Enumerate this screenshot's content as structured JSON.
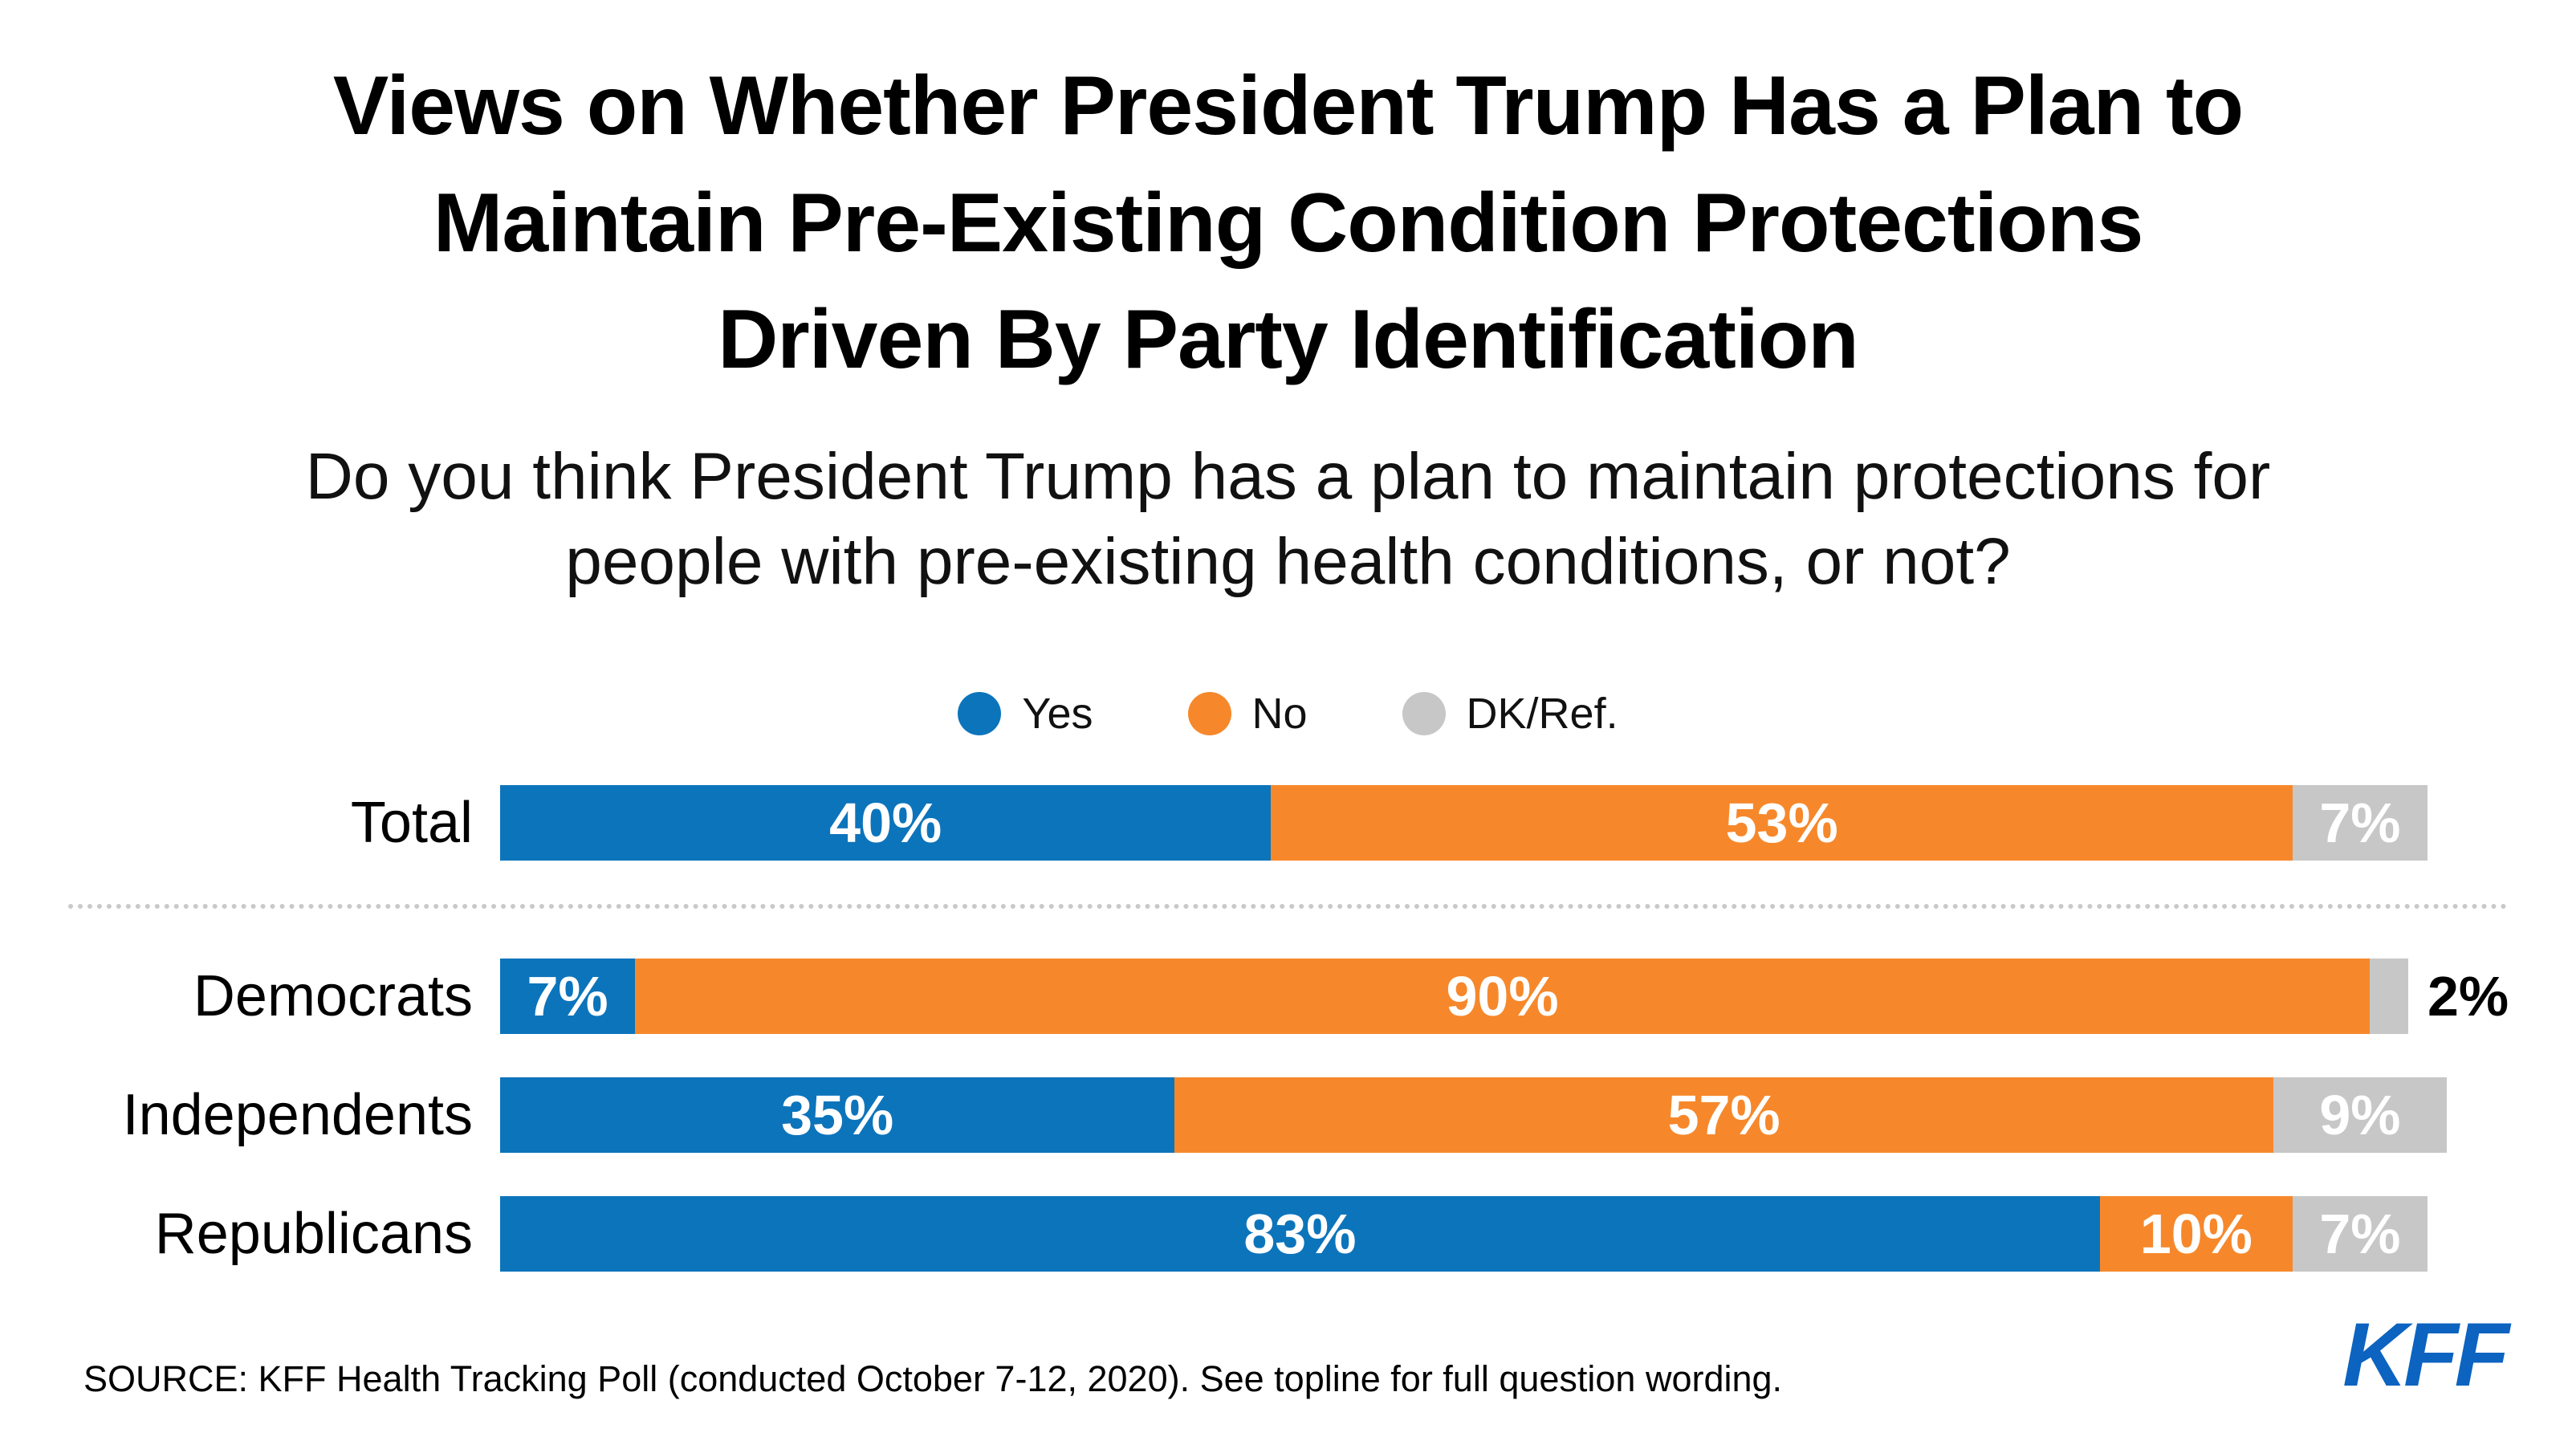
{
  "title_lines": [
    "Views on Whether President Trump Has a Plan to",
    "Maintain Pre-Existing Condition Protections",
    "Driven By Party Identification"
  ],
  "subtitle_lines": [
    "Do you think President Trump has a plan to maintain protections for",
    "people with pre-existing health conditions, or not?"
  ],
  "legend": {
    "items": [
      {
        "label": "Yes",
        "color": "#0c74bb"
      },
      {
        "label": "No",
        "color": "#f6882b"
      },
      {
        "label": "DK/Ref.",
        "color": "#c7c7c7"
      }
    ]
  },
  "chart_data": {
    "type": "bar",
    "stacked": true,
    "orientation": "horizontal",
    "unit": "%",
    "xlim": [
      0,
      100
    ],
    "legend_position": "top",
    "categories": [
      "Total",
      "Democrats",
      "Independents",
      "Republicans"
    ],
    "series": [
      {
        "name": "Yes",
        "color": "#0c74bb",
        "values": [
          40,
          7,
          35,
          83
        ]
      },
      {
        "name": "No",
        "color": "#f6882b",
        "values": [
          53,
          90,
          57,
          10
        ]
      },
      {
        "name": "DK/Ref.",
        "color": "#c7c7c7",
        "values": [
          7,
          2,
          9,
          7
        ]
      }
    ],
    "divider_after_category": "Total",
    "outside_labels": [
      {
        "category": "Democrats",
        "series": "DK/Ref.",
        "text_color": "#000000"
      }
    ]
  },
  "source": "SOURCE: KFF Health Tracking Poll (conducted October 7-12, 2020). See topline for full question wording.",
  "brand": {
    "logo_text": "KFF",
    "logo_color": "#0c63c0"
  }
}
